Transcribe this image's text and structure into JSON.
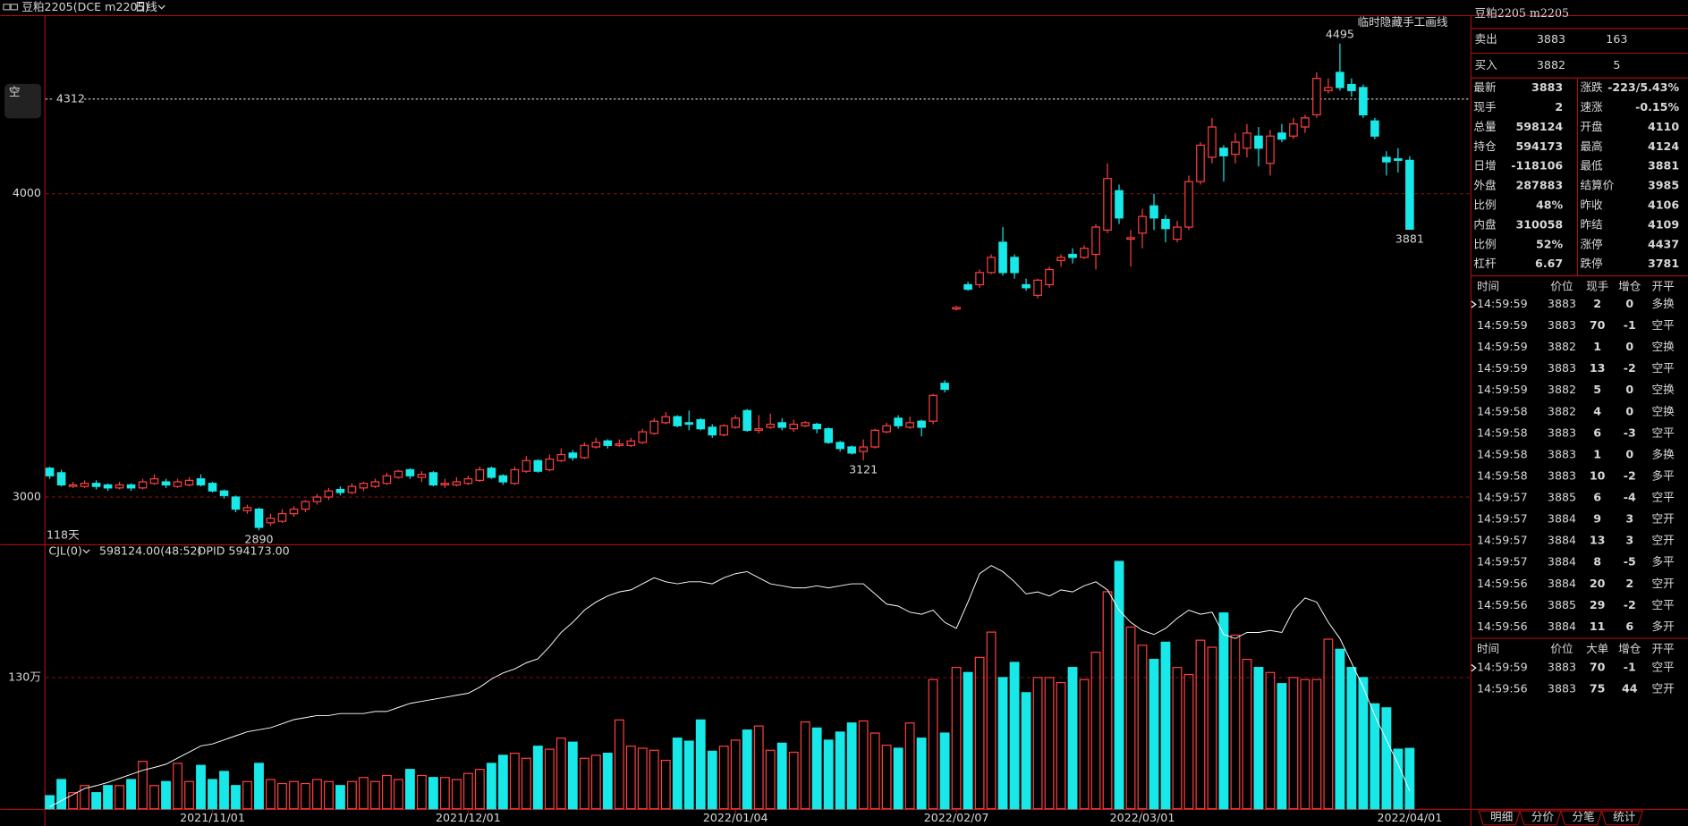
{
  "toolbar": {
    "symbol": "豆粕2205(DCE m2205)",
    "period": "日线"
  },
  "chart_data": [
    {
      "type": "candlestick",
      "note": "临时隐藏手工画线",
      "period_label": "118天",
      "position_marker": "空",
      "price_line": 4312,
      "ylim": [
        2848,
        4589
      ],
      "yticks": [
        3000,
        4000
      ],
      "grid": true,
      "xticks": [
        {
          "value": 14,
          "label": "2021/11/01"
        },
        {
          "value": 36,
          "label": "2021/12/01"
        },
        {
          "value": 59,
          "label": "2022/01/04"
        },
        {
          "value": 78,
          "label": "2022/02/07"
        },
        {
          "value": 94,
          "label": "2022/03/01"
        },
        {
          "value": 117,
          "label": "2022/04/01"
        }
      ],
      "up_color": "#ff4040",
      "down_color": "#18e8e8",
      "candles": [
        [
          3095,
          3100,
          3060,
          3070
        ],
        [
          3080,
          3090,
          3035,
          3040
        ],
        [
          3035,
          3050,
          3030,
          3040
        ],
        [
          3035,
          3055,
          3030,
          3045
        ],
        [
          3045,
          3055,
          3025,
          3035
        ],
        [
          3040,
          3045,
          3020,
          3030
        ],
        [
          3030,
          3050,
          3025,
          3040
        ],
        [
          3040,
          3045,
          3020,
          3030
        ],
        [
          3030,
          3060,
          3025,
          3050
        ],
        [
          3045,
          3075,
          3040,
          3060
        ],
        [
          3050,
          3060,
          3030,
          3040
        ],
        [
          3035,
          3060,
          3030,
          3050
        ],
        [
          3040,
          3065,
          3035,
          3055
        ],
        [
          3060,
          3075,
          3035,
          3040
        ],
        [
          3045,
          3050,
          3015,
          3020
        ],
        [
          3020,
          3025,
          2995,
          3005
        ],
        [
          3000,
          3005,
          2950,
          2960
        ],
        [
          2955,
          2975,
          2945,
          2965
        ],
        [
          2960,
          2965,
          2890,
          2900
        ],
        [
          2915,
          2945,
          2905,
          2930
        ],
        [
          2920,
          2960,
          2915,
          2945
        ],
        [
          2945,
          2970,
          2935,
          2960
        ],
        [
          2960,
          2990,
          2950,
          2985
        ],
        [
          2985,
          3010,
          2975,
          3000
        ],
        [
          3000,
          3030,
          2990,
          3020
        ],
        [
          3025,
          3035,
          3005,
          3015
        ],
        [
          3015,
          3045,
          3010,
          3035
        ],
        [
          3030,
          3050,
          3020,
          3045
        ],
        [
          3035,
          3060,
          3030,
          3050
        ],
        [
          3045,
          3080,
          3040,
          3070
        ],
        [
          3065,
          3090,
          3060,
          3085
        ],
        [
          3090,
          3095,
          3060,
          3070
        ],
        [
          3065,
          3085,
          3050,
          3075
        ],
        [
          3080,
          3085,
          3035,
          3040
        ],
        [
          3040,
          3060,
          3030,
          3045
        ],
        [
          3040,
          3065,
          3035,
          3050
        ],
        [
          3045,
          3070,
          3040,
          3060
        ],
        [
          3055,
          3100,
          3050,
          3090
        ],
        [
          3095,
          3100,
          3060,
          3065
        ],
        [
          3070,
          3075,
          3040,
          3050
        ],
        [
          3045,
          3100,
          3040,
          3090
        ],
        [
          3085,
          3135,
          3080,
          3120
        ],
        [
          3120,
          3125,
          3080,
          3085
        ],
        [
          3090,
          3140,
          3085,
          3125
        ],
        [
          3120,
          3160,
          3115,
          3140
        ],
        [
          3145,
          3155,
          3120,
          3130
        ],
        [
          3130,
          3180,
          3125,
          3170
        ],
        [
          3165,
          3195,
          3160,
          3180
        ],
        [
          3185,
          3190,
          3160,
          3170
        ],
        [
          3170,
          3190,
          3165,
          3175
        ],
        [
          3170,
          3195,
          3165,
          3185
        ],
        [
          3180,
          3225,
          3175,
          3215
        ],
        [
          3210,
          3260,
          3205,
          3250
        ],
        [
          3245,
          3280,
          3240,
          3265
        ],
        [
          3265,
          3270,
          3230,
          3235
        ],
        [
          3245,
          3285,
          3220,
          3240
        ],
        [
          3255,
          3260,
          3220,
          3225
        ],
        [
          3230,
          3240,
          3195,
          3205
        ],
        [
          3205,
          3240,
          3200,
          3235
        ],
        [
          3230,
          3270,
          3225,
          3260
        ],
        [
          3285,
          3290,
          3215,
          3220
        ],
        [
          3220,
          3270,
          3210,
          3225
        ],
        [
          3230,
          3275,
          3225,
          3240
        ],
        [
          3245,
          3260,
          3220,
          3230
        ],
        [
          3225,
          3255,
          3215,
          3240
        ],
        [
          3235,
          3250,
          3230,
          3245
        ],
        [
          3240,
          3245,
          3210,
          3225
        ],
        [
          3225,
          3230,
          3175,
          3180
        ],
        [
          3180,
          3185,
          3150,
          3160
        ],
        [
          3165,
          3170,
          3140,
          3145
        ],
        [
          3150,
          3190,
          3121,
          3165
        ],
        [
          3165,
          3225,
          3160,
          3220
        ],
        [
          3215,
          3245,
          3210,
          3235
        ],
        [
          3260,
          3270,
          3225,
          3235
        ],
        [
          3230,
          3265,
          3225,
          3245
        ],
        [
          3250,
          3255,
          3200,
          3230
        ],
        [
          3250,
          3340,
          3240,
          3335
        ],
        [
          3375,
          3385,
          3345,
          3355
        ],
        [
          3620,
          3630,
          3615,
          3625
        ],
        [
          3700,
          3710,
          3680,
          3685
        ],
        [
          3700,
          3750,
          3690,
          3740
        ],
        [
          3740,
          3800,
          3735,
          3790
        ],
        [
          3840,
          3890,
          3730,
          3740
        ],
        [
          3790,
          3800,
          3720,
          3740
        ],
        [
          3700,
          3720,
          3680,
          3690
        ],
        [
          3665,
          3720,
          3655,
          3715
        ],
        [
          3700,
          3760,
          3690,
          3750
        ],
        [
          3780,
          3800,
          3760,
          3790
        ],
        [
          3800,
          3820,
          3770,
          3790
        ],
        [
          3790,
          3830,
          3785,
          3820
        ],
        [
          3800,
          3900,
          3750,
          3890
        ],
        [
          3880,
          4100,
          3870,
          4050
        ],
        [
          4010,
          4030,
          3900,
          3920
        ],
        [
          3850,
          3880,
          3760,
          3855
        ],
        [
          3870,
          3950,
          3820,
          3925
        ],
        [
          3960,
          4000,
          3880,
          3920
        ],
        [
          3915,
          3930,
          3840,
          3885
        ],
        [
          3850,
          3910,
          3840,
          3890
        ],
        [
          3890,
          4060,
          3880,
          4040
        ],
        [
          4040,
          4170,
          4030,
          4160
        ],
        [
          4120,
          4250,
          4100,
          4220
        ],
        [
          4150,
          4160,
          4040,
          4125
        ],
        [
          4130,
          4200,
          4100,
          4170
        ],
        [
          4150,
          4230,
          4120,
          4200
        ],
        [
          4190,
          4220,
          4090,
          4150
        ],
        [
          4100,
          4210,
          4060,
          4190
        ],
        [
          4200,
          4230,
          4170,
          4180
        ],
        [
          4190,
          4250,
          4180,
          4230
        ],
        [
          4220,
          4260,
          4200,
          4250
        ],
        [
          4260,
          4400,
          4250,
          4380
        ],
        [
          4340,
          4380,
          4330,
          4350
        ],
        [
          4400,
          4495,
          4340,
          4350
        ],
        [
          4360,
          4380,
          4320,
          4340
        ],
        [
          4350,
          4360,
          4250,
          4260
        ],
        [
          4240,
          4250,
          4180,
          4190
        ],
        [
          4120,
          4140,
          4060,
          4105
        ],
        [
          4115,
          4150,
          4070,
          4110
        ],
        [
          4110,
          4124,
          3881,
          3883
        ]
      ]
    },
    {
      "type": "bar",
      "ylim": [
        0,
        261
      ],
      "yticks": [
        {
          "value": 130,
          "label": "130万"
        }
      ],
      "y2lim": [
        55,
        120
      ],
      "grid": true,
      "legend_values": [
        "598124.00(48:52)",
        "OPID 594173.00"
      ],
      "series": [
        {
          "name": "CJL(0)",
          "color": "#18e8e8",
          "values": [
            13,
            29,
            16,
            23,
            16,
            23,
            23,
            29,
            47,
            23,
            27,
            45,
            27,
            43,
            29,
            37,
            23,
            27,
            45,
            29,
            25,
            27,
            25,
            29,
            27,
            23,
            27,
            31,
            27,
            33,
            29,
            39,
            33,
            31,
            31,
            29,
            35,
            39,
            45,
            53,
            55,
            50,
            62,
            59,
            70,
            66,
            50,
            53,
            55,
            88,
            62,
            60,
            58,
            48,
            70,
            67,
            88,
            57,
            62,
            68,
            78,
            82,
            58,
            65,
            56,
            86,
            80,
            68,
            76,
            85,
            87,
            75,
            63,
            60,
            85,
            70,
            128,
            75,
            140,
            135,
            150,
            175,
            130,
            145,
            115,
            130,
            130,
            125,
            140,
            128,
            155,
            215,
            245,
            180,
            162,
            148,
            165,
            140,
            133,
            167,
            160,
            194,
            172,
            148,
            140,
            135,
            124,
            130,
            128,
            128,
            168,
            158,
            140,
            130,
            104,
            100,
            59,
            59.8124
          ]
        },
        {
          "name": "OPID",
          "color": "#ffffff",
          "axis": "y2",
          "values": [
            55.5,
            57,
            58.5,
            60,
            60.7,
            61.5,
            62.5,
            63.5,
            64.5,
            65.2,
            66,
            67.5,
            69,
            70.5,
            71,
            72,
            73,
            74,
            74.5,
            75,
            76,
            77,
            77.5,
            78,
            78,
            78.5,
            78.5,
            78.5,
            79,
            79,
            80,
            81,
            81.5,
            82,
            82.5,
            83,
            83.5,
            85,
            87,
            88.5,
            89.5,
            91,
            92,
            95,
            98.5,
            101,
            104,
            106,
            107.5,
            108.5,
            109,
            110.5,
            112,
            111,
            110.5,
            111,
            111,
            110.5,
            112,
            113,
            113.5,
            112,
            110.5,
            110,
            109.5,
            109.5,
            110,
            109.5,
            110,
            110.5,
            110.5,
            108,
            105.5,
            105,
            103.5,
            103,
            104,
            101,
            99.5,
            106,
            113,
            115,
            113.5,
            111,
            108,
            108.5,
            107.5,
            109,
            108.5,
            110,
            111,
            109,
            104,
            101,
            99,
            98,
            99.5,
            102,
            104,
            103,
            103.5,
            98,
            97,
            98.5,
            98.5,
            99,
            98.5,
            104,
            107,
            106,
            101,
            97,
            91,
            85,
            78,
            72,
            66,
            59.4173
          ]
        }
      ]
    }
  ],
  "quote": {
    "title": "豆粕2205  m2205",
    "sell": {
      "label": "卖出",
      "price": 3883,
      "volume": 163
    },
    "buy": {
      "label": "买入",
      "price": 3882,
      "volume": 5
    },
    "stats": [
      [
        "最新",
        "3883",
        "涨跌",
        "-223/5.43%"
      ],
      [
        "现手",
        "2",
        "速涨",
        "-0.15%"
      ],
      [
        "总量",
        "598124",
        "开盘",
        "4110"
      ],
      [
        "持仓",
        "594173",
        "最高",
        "4124"
      ],
      [
        "日增",
        "-118106",
        "最低",
        "3881"
      ],
      [
        "外盘",
        "287883",
        "结算价",
        "3985"
      ],
      [
        "比例",
        "48%",
        "昨收",
        "4106"
      ],
      [
        "内盘",
        "310058",
        "昨结",
        "4109"
      ],
      [
        "比例",
        "52%",
        "涨停",
        "4437"
      ],
      [
        "杠杆",
        "6.67",
        "跌停",
        "3781"
      ]
    ]
  },
  "ticks_table": {
    "header": [
      "时间",
      "价位",
      "现手",
      "增仓",
      "开平"
    ],
    "rows": [
      [
        "14:59:59",
        "3883",
        "2",
        "0",
        "多换"
      ],
      [
        "14:59:59",
        "3883",
        "70",
        "-1",
        "空平"
      ],
      [
        "14:59:59",
        "3882",
        "1",
        "0",
        "空换"
      ],
      [
        "14:59:59",
        "3883",
        "13",
        "-2",
        "空平"
      ],
      [
        "14:59:59",
        "3882",
        "5",
        "0",
        "空换"
      ],
      [
        "14:59:58",
        "3882",
        "4",
        "0",
        "空换"
      ],
      [
        "14:59:58",
        "3883",
        "6",
        "-3",
        "空平"
      ],
      [
        "14:59:58",
        "3883",
        "1",
        "0",
        "多换"
      ],
      [
        "14:59:58",
        "3883",
        "10",
        "-2",
        "多平"
      ],
      [
        "14:59:57",
        "3885",
        "6",
        "-4",
        "空平"
      ],
      [
        "14:59:57",
        "3884",
        "9",
        "3",
        "空开"
      ],
      [
        "14:59:57",
        "3884",
        "13",
        "3",
        "空开"
      ],
      [
        "14:59:57",
        "3884",
        "8",
        "-5",
        "多平"
      ],
      [
        "14:59:56",
        "3884",
        "20",
        "2",
        "空开"
      ],
      [
        "14:59:56",
        "3885",
        "29",
        "-2",
        "空平"
      ],
      [
        "14:59:56",
        "3884",
        "11",
        "6",
        "多开"
      ]
    ]
  },
  "big_orders": {
    "header": [
      "时间",
      "价位",
      "大单",
      "增仓",
      "开平"
    ],
    "rows": [
      [
        "14:59:59",
        "3883",
        "70",
        "-1",
        "空平"
      ],
      [
        "14:59:56",
        "3883",
        "75",
        "44",
        "空开"
      ]
    ]
  },
  "tabs": [
    "明细",
    "分价",
    "分笔",
    "统计"
  ]
}
